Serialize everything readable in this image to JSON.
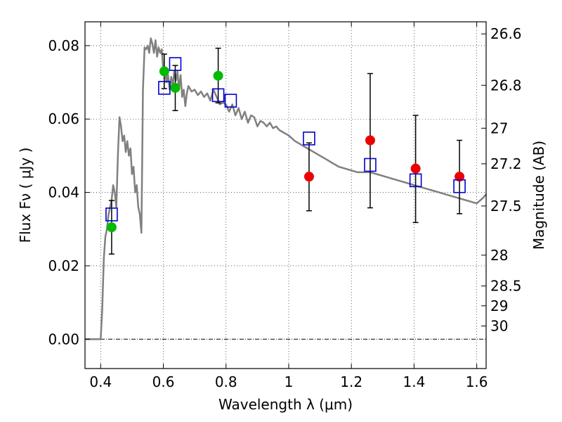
{
  "chart_data": {
    "type": "scatter",
    "xlabel": "Wavelength  λ (μm)",
    "ylabel": "Flux  Fν  ( μJy )",
    "y2label": "Magnitude (AB)",
    "xlim": [
      0.35,
      1.63
    ],
    "ylim": [
      -0.008,
      0.0865
    ],
    "x_ticks": [
      0.4,
      0.6,
      0.8,
      1.0,
      1.2,
      1.4,
      1.6
    ],
    "x_tick_labels": [
      "0.4",
      "0.6",
      "0.8",
      "1",
      "1.2",
      "1.4",
      "1.6"
    ],
    "y_ticks": [
      0.0,
      0.02,
      0.04,
      0.06,
      0.08
    ],
    "y_tick_labels": [
      "0.00",
      "0.02",
      "0.04",
      "0.06",
      "0.08"
    ],
    "magnitude_ticks": [
      {
        "label": "26.6",
        "flux": 0.0832
      },
      {
        "label": "26.8",
        "flux": 0.0692
      },
      {
        "label": "27",
        "flux": 0.0575
      },
      {
        "label": "27.2",
        "flux": 0.0478
      },
      {
        "label": "27.5",
        "flux": 0.0363
      },
      {
        "label": "28",
        "flux": 0.0229
      },
      {
        "label": "28.5",
        "flux": 0.0145
      },
      {
        "label": "29",
        "flux": 0.0091
      },
      {
        "label": "30",
        "flux": 0.0036
      }
    ],
    "grid": true,
    "colors": {
      "model": "#808080",
      "green_points": "#00bb00",
      "red_points": "#ee0000",
      "model_squares": "#0000cc",
      "errorbars": "#000000"
    },
    "model_spectrum": [
      [
        0.35,
        0.0
      ],
      [
        0.39,
        0.0
      ],
      [
        0.4,
        0.0
      ],
      [
        0.405,
        0.008
      ],
      [
        0.41,
        0.022
      ],
      [
        0.415,
        0.028
      ],
      [
        0.42,
        0.03
      ],
      [
        0.425,
        0.034
      ],
      [
        0.43,
        0.036
      ],
      [
        0.435,
        0.038
      ],
      [
        0.44,
        0.042
      ],
      [
        0.445,
        0.04
      ],
      [
        0.45,
        0.036
      ],
      [
        0.455,
        0.05
      ],
      [
        0.46,
        0.0605
      ],
      [
        0.465,
        0.058
      ],
      [
        0.47,
        0.054
      ],
      [
        0.475,
        0.0555
      ],
      [
        0.48,
        0.051
      ],
      [
        0.485,
        0.054
      ],
      [
        0.49,
        0.05
      ],
      [
        0.495,
        0.052
      ],
      [
        0.5,
        0.045
      ],
      [
        0.505,
        0.047
      ],
      [
        0.51,
        0.04
      ],
      [
        0.515,
        0.042
      ],
      [
        0.52,
        0.036
      ],
      [
        0.525,
        0.034
      ],
      [
        0.53,
        0.029
      ],
      [
        0.535,
        0.068
      ],
      [
        0.54,
        0.0795
      ],
      [
        0.545,
        0.079
      ],
      [
        0.55,
        0.08
      ],
      [
        0.555,
        0.078
      ],
      [
        0.56,
        0.082
      ],
      [
        0.565,
        0.0805
      ],
      [
        0.57,
        0.078
      ],
      [
        0.575,
        0.0815
      ],
      [
        0.58,
        0.077
      ],
      [
        0.585,
        0.0795
      ],
      [
        0.59,
        0.078
      ],
      [
        0.595,
        0.079
      ],
      [
        0.6,
        0.073
      ],
      [
        0.605,
        0.074
      ],
      [
        0.61,
        0.07
      ],
      [
        0.615,
        0.072
      ],
      [
        0.62,
        0.068
      ],
      [
        0.625,
        0.0715
      ],
      [
        0.63,
        0.069
      ],
      [
        0.635,
        0.073
      ],
      [
        0.64,
        0.0705
      ],
      [
        0.645,
        0.073
      ],
      [
        0.65,
        0.068
      ],
      [
        0.655,
        0.072
      ],
      [
        0.66,
        0.066
      ],
      [
        0.665,
        0.068
      ],
      [
        0.67,
        0.0635
      ],
      [
        0.675,
        0.067
      ],
      [
        0.68,
        0.069
      ],
      [
        0.69,
        0.0675
      ],
      [
        0.7,
        0.068
      ],
      [
        0.71,
        0.0665
      ],
      [
        0.72,
        0.0675
      ],
      [
        0.73,
        0.066
      ],
      [
        0.74,
        0.067
      ],
      [
        0.75,
        0.065
      ],
      [
        0.76,
        0.068
      ],
      [
        0.77,
        0.066
      ],
      [
        0.78,
        0.064
      ],
      [
        0.79,
        0.0645
      ],
      [
        0.8,
        0.064
      ],
      [
        0.81,
        0.062
      ],
      [
        0.82,
        0.064
      ],
      [
        0.83,
        0.061
      ],
      [
        0.84,
        0.063
      ],
      [
        0.85,
        0.06
      ],
      [
        0.86,
        0.062
      ],
      [
        0.87,
        0.059
      ],
      [
        0.88,
        0.061
      ],
      [
        0.89,
        0.0605
      ],
      [
        0.9,
        0.058
      ],
      [
        0.91,
        0.0595
      ],
      [
        0.92,
        0.059
      ],
      [
        0.93,
        0.058
      ],
      [
        0.94,
        0.059
      ],
      [
        0.95,
        0.0575
      ],
      [
        0.96,
        0.058
      ],
      [
        0.97,
        0.057
      ],
      [
        0.98,
        0.0565
      ],
      [
        0.99,
        0.056
      ],
      [
        1.0,
        0.0555
      ],
      [
        1.02,
        0.054
      ],
      [
        1.04,
        0.053
      ],
      [
        1.06,
        0.052
      ],
      [
        1.08,
        0.051
      ],
      [
        1.1,
        0.05
      ],
      [
        1.12,
        0.049
      ],
      [
        1.14,
        0.048
      ],
      [
        1.16,
        0.047
      ],
      [
        1.18,
        0.0465
      ],
      [
        1.2,
        0.046
      ],
      [
        1.22,
        0.0455
      ],
      [
        1.24,
        0.0455
      ],
      [
        1.26,
        0.0455
      ],
      [
        1.28,
        0.045
      ],
      [
        1.3,
        0.0445
      ],
      [
        1.32,
        0.044
      ],
      [
        1.34,
        0.0435
      ],
      [
        1.36,
        0.043
      ],
      [
        1.38,
        0.0425
      ],
      [
        1.4,
        0.042
      ],
      [
        1.42,
        0.0415
      ],
      [
        1.44,
        0.041
      ],
      [
        1.46,
        0.0405
      ],
      [
        1.48,
        0.04
      ],
      [
        1.5,
        0.0395
      ],
      [
        1.52,
        0.039
      ],
      [
        1.54,
        0.0385
      ],
      [
        1.56,
        0.038
      ],
      [
        1.58,
        0.0375
      ],
      [
        1.6,
        0.037
      ],
      [
        1.62,
        0.0385
      ],
      [
        1.63,
        0.0395
      ]
    ],
    "series": [
      {
        "marker": "circle",
        "color": "#00bb00",
        "points": [
          {
            "x": 0.435,
            "y": 0.0305,
            "err": [
              0.0232,
              0.0378
            ]
          },
          {
            "x": 0.603,
            "y": 0.073,
            "err": [
              0.0683,
              0.0777
            ]
          },
          {
            "x": 0.638,
            "y": 0.0685,
            "err": [
              0.0623,
              0.0746
            ]
          },
          {
            "x": 0.775,
            "y": 0.0718,
            "err": [
              0.0644,
              0.0793
            ]
          }
        ]
      },
      {
        "marker": "circle",
        "color": "#ee0000",
        "points": [
          {
            "x": 1.065,
            "y": 0.0443,
            "err": [
              0.035,
              0.0535
            ]
          },
          {
            "x": 1.26,
            "y": 0.0542,
            "err": [
              0.0358,
              0.0724
            ]
          },
          {
            "x": 1.405,
            "y": 0.0465,
            "err": [
              0.0318,
              0.061
            ]
          },
          {
            "x": 1.545,
            "y": 0.0443,
            "err": [
              0.0342,
              0.0542
            ]
          }
        ]
      },
      {
        "marker": "square",
        "color": "#0000cc",
        "points": [
          {
            "x": 0.435,
            "y": 0.034
          },
          {
            "x": 0.603,
            "y": 0.0685
          },
          {
            "x": 0.638,
            "y": 0.075
          },
          {
            "x": 0.775,
            "y": 0.0665
          },
          {
            "x": 0.815,
            "y": 0.065
          },
          {
            "x": 1.065,
            "y": 0.0547
          },
          {
            "x": 1.26,
            "y": 0.0475
          },
          {
            "x": 1.405,
            "y": 0.0433
          },
          {
            "x": 1.545,
            "y": 0.0417
          }
        ]
      }
    ]
  }
}
